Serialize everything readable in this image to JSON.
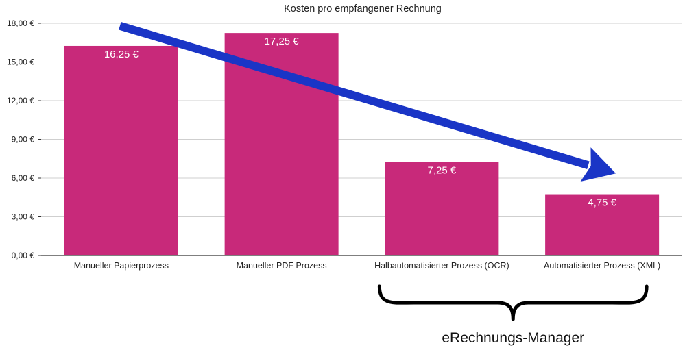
{
  "chart_data": {
    "type": "bar",
    "title": "Kosten pro empfangener Rechnung",
    "categories": [
      "Manueller Papierprozess",
      "Manueller PDF Prozess",
      "Halbautomatisierter Prozess (OCR)",
      "Automatisierter Prozess (XML)"
    ],
    "values": [
      16.25,
      17.25,
      7.25,
      4.75
    ],
    "value_labels": [
      "16,25 €",
      "17,25 €",
      "7,25 €",
      "4,75 €"
    ],
    "ylim": [
      0,
      18
    ],
    "yticks": [
      0,
      3,
      6,
      9,
      12,
      15,
      18
    ],
    "ytick_labels": [
      "0,00 €",
      "3,00 €",
      "6,00 €",
      "9,00 €",
      "12,00 €",
      "15,00 €",
      "18,00 €"
    ],
    "xlabel": "",
    "ylabel": "",
    "grid": true,
    "legend": "none",
    "bar_color": "#c8297a",
    "arrow": {
      "color": "#1a35c6",
      "from": [
        0,
        17.8
      ],
      "to": [
        3,
        6.2
      ]
    },
    "brace": {
      "covers_categories": [
        2,
        3
      ],
      "label": "eRechnungs-Manager"
    }
  }
}
